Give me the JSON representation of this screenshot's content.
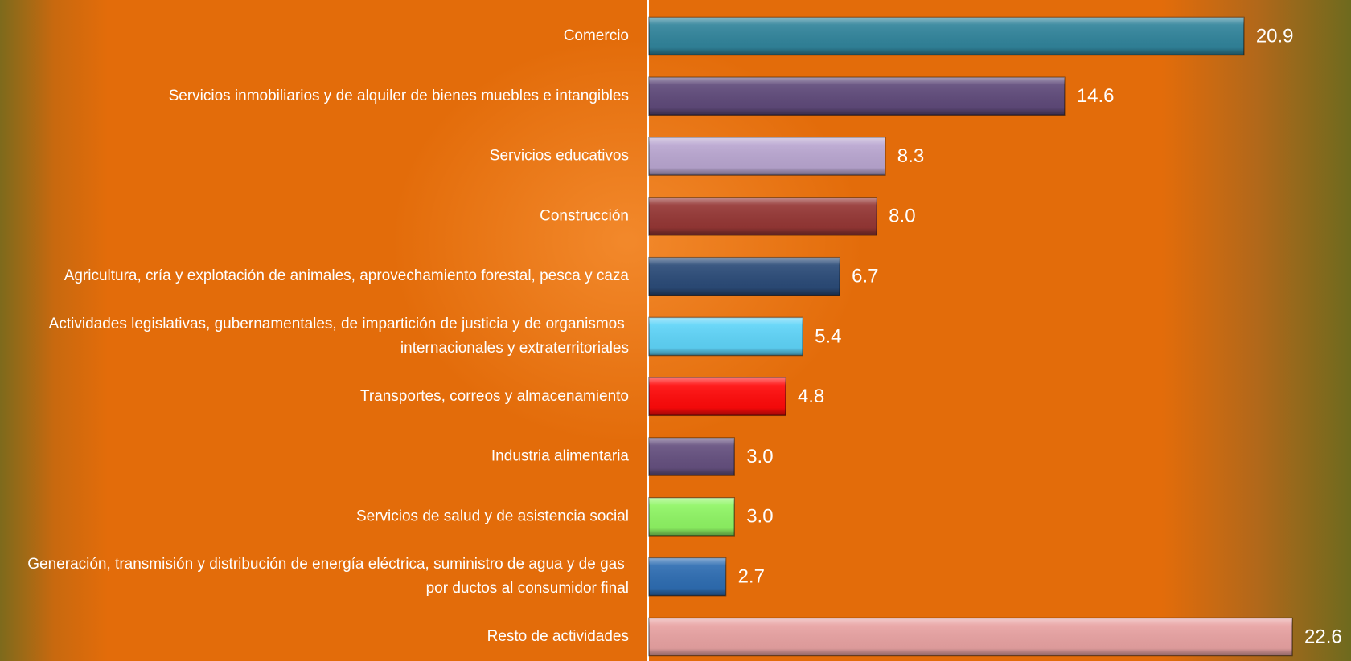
{
  "chart_data": {
    "type": "hbar",
    "categories": [
      "Comercio",
      "Servicios inmobiliarios y de alquiler de bienes muebles e intangibles",
      "Servicios educativos",
      "Construcción",
      "Agricultura, cría y explotación de animales, aprovechamiento forestal, pesca y caza",
      "Actividades legislativas, gubernamentales, de impartición de justicia y de organismos internacionales y extraterritoriales",
      "Transportes, correos y almacenamiento",
      "Industria alimentaria",
      "Servicios de salud y de asistencia social",
      "Generación, transmisión y distribución de energía eléctrica, suministro de agua y de gas por ductos al consumidor final",
      "Resto de actividades"
    ],
    "values": [
      20.9,
      14.6,
      8.3,
      8.0,
      6.7,
      5.4,
      4.8,
      3.0,
      3.0,
      2.7,
      22.6
    ],
    "value_labels": [
      "20.9",
      "14.6",
      "8.3",
      "8.0",
      "6.7",
      "5.4",
      "4.8",
      "3.0",
      "3.0",
      "2.7",
      "22.6"
    ],
    "colors": [
      "#31849b",
      "#5f4a7a",
      "#b9a6d0",
      "#953735",
      "#2b4b78",
      "#5fd4f8",
      "#ff0a0a",
      "#65507f",
      "#8ff564",
      "#2e6db2",
      "#e8a2a2"
    ]
  }
}
